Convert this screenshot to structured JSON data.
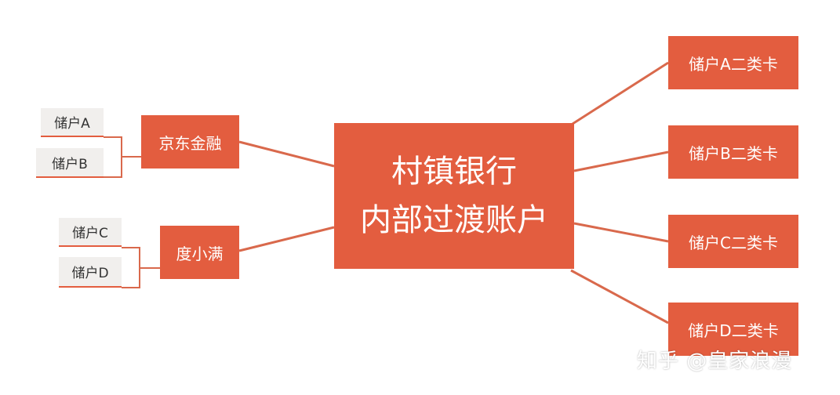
{
  "center": {
    "line1": "村镇银行",
    "line2": "内部过渡账户"
  },
  "right_nodes": [
    "储户A二类卡",
    "储户B二类卡",
    "储户C二类卡",
    "储户D二类卡"
  ],
  "left_nodes": [
    {
      "label": "京东金融",
      "children": [
        "储户A",
        "储户B"
      ]
    },
    {
      "label": "度小满",
      "children": [
        "储户C",
        "储户D"
      ]
    }
  ],
  "watermark": "知乎 @皇家浪漫",
  "colors": {
    "node": "#e35d3f",
    "leaf_bg": "#f1efed",
    "line": "#d9694c"
  }
}
